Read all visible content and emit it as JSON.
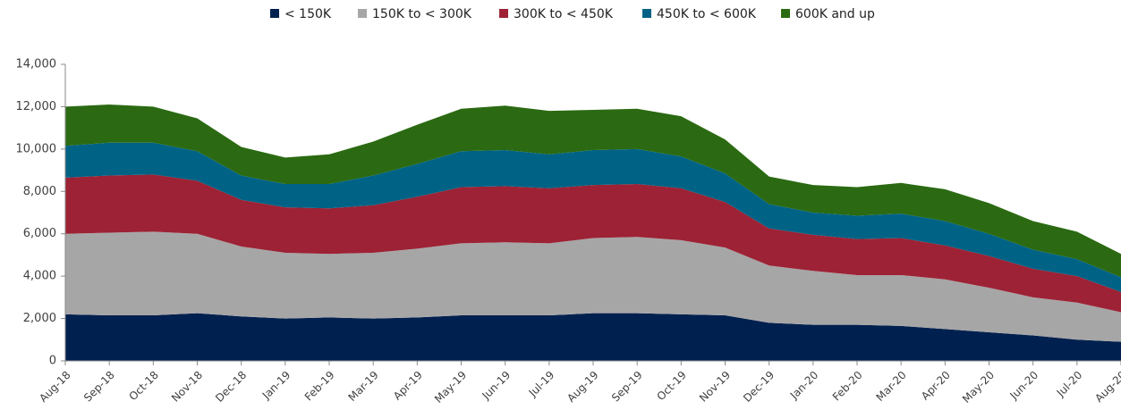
{
  "chart_data": {
    "type": "stacked_area",
    "categories": [
      "Aug-18",
      "Sep-18",
      "Oct-18",
      "Nov-18",
      "Dec-18",
      "Jan-19",
      "Feb-19",
      "Mar-19",
      "Apr-19",
      "May-19",
      "Jun-19",
      "Jul-19",
      "Aug-19",
      "Sep-19",
      "Oct-19",
      "Nov-19",
      "Dec-19",
      "Jan-20",
      "Feb-20",
      "Mar-20",
      "Apr-20",
      "May-20",
      "Jun-20",
      "Jul-20",
      "Aug-20"
    ],
    "series": [
      {
        "name": "< 150K",
        "color": "#00204f",
        "values": [
          2200,
          2150,
          2150,
          2250,
          2100,
          2000,
          2050,
          2000,
          2050,
          2150,
          2150,
          2150,
          2250,
          2250,
          2200,
          2150,
          1800,
          1700,
          1700,
          1650,
          1500,
          1350,
          1200,
          1000,
          900
        ]
      },
      {
        "name": "150K to < 300K",
        "color": "#a6a6a6",
        "values": [
          3800,
          3900,
          3950,
          3750,
          3300,
          3100,
          3000,
          3100,
          3250,
          3400,
          3450,
          3400,
          3550,
          3600,
          3500,
          3200,
          2700,
          2550,
          2350,
          2400,
          2350,
          2100,
          1800,
          1750,
          1400
        ]
      },
      {
        "name": "300K to < 450K",
        "color": "#9d2235",
        "values": [
          2650,
          2700,
          2700,
          2500,
          2200,
          2150,
          2150,
          2250,
          2450,
          2650,
          2650,
          2600,
          2500,
          2500,
          2450,
          2150,
          1750,
          1700,
          1700,
          1750,
          1600,
          1500,
          1350,
          1250,
          950
        ]
      },
      {
        "name": "450K to < 600K",
        "color": "#006386",
        "values": [
          1500,
          1550,
          1500,
          1400,
          1150,
          1100,
          1150,
          1400,
          1550,
          1700,
          1700,
          1600,
          1650,
          1650,
          1500,
          1350,
          1150,
          1050,
          1100,
          1150,
          1150,
          1050,
          900,
          800,
          700
        ]
      },
      {
        "name": "600K and up",
        "color": "#2b6a12",
        "values": [
          1850,
          1800,
          1700,
          1550,
          1350,
          1250,
          1400,
          1600,
          1850,
          2000,
          2100,
          2050,
          1900,
          1900,
          1900,
          1600,
          1300,
          1300,
          1350,
          1450,
          1500,
          1450,
          1350,
          1300,
          1100
        ]
      }
    ],
    "ylim": [
      0,
      14000
    ],
    "yticks": [
      0,
      {
        "value": 2000,
        "label": "2,000"
      },
      {
        "value": 4000,
        "label": "4,000"
      },
      {
        "value": 6000,
        "label": "6,000"
      },
      {
        "value": 8000,
        "label": "8,000"
      },
      {
        "value": 10000,
        "label": "10,000"
      },
      {
        "value": 12000,
        "label": "12,000"
      },
      {
        "value": 14000,
        "label": "14,000"
      }
    ],
    "legend": "top"
  }
}
